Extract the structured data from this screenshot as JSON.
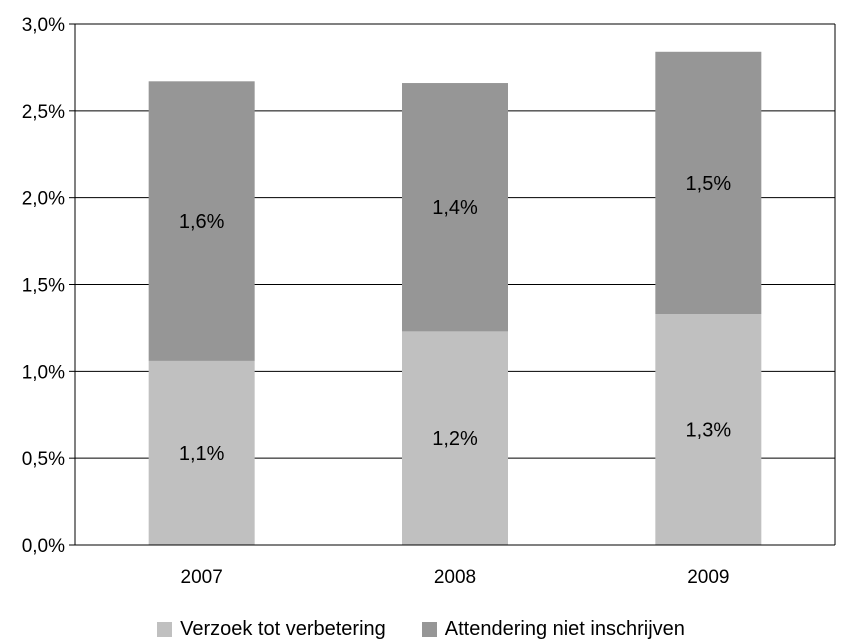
{
  "chart_data": {
    "type": "bar",
    "stacked": true,
    "categories": [
      "2007",
      "2008",
      "2009"
    ],
    "series": [
      {
        "name": "Verzoek tot verbetering",
        "values": [
          1.06,
          1.23,
          1.33
        ],
        "labels": [
          "1,1%",
          "1,2%",
          "1,3%"
        ],
        "color": "#c0c0c0"
      },
      {
        "name": "Attendering niet inschrijven",
        "values": [
          1.61,
          1.43,
          1.51
        ],
        "labels": [
          "1,6%",
          "1,4%",
          "1,5%"
        ],
        "color": "#969696"
      }
    ],
    "ylim": [
      0,
      3.0
    ],
    "yticks": [
      "0,0%",
      "0,5%",
      "1,0%",
      "1,5%",
      "2,0%",
      "2,5%",
      "3,0%"
    ],
    "grid": true,
    "legend_position": "bottom"
  }
}
